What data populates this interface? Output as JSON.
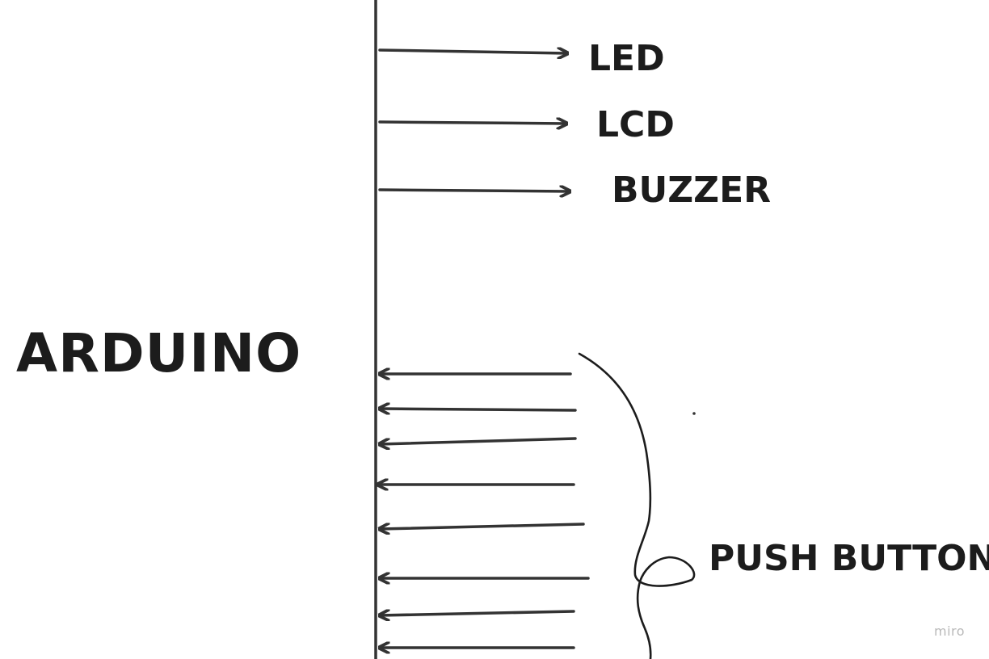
{
  "colors": {
    "ink": "#333333",
    "text": "#1c1c1c",
    "watermark": "#b9b9b9",
    "background": "#ffffff"
  },
  "main_label": "ARDUINO",
  "outputs": [
    {
      "label": "LED"
    },
    {
      "label": "LCD"
    },
    {
      "label": "BUZZER"
    }
  ],
  "inputs": {
    "label": "PUSH BUTTON",
    "count": 8
  },
  "watermark": "miro"
}
